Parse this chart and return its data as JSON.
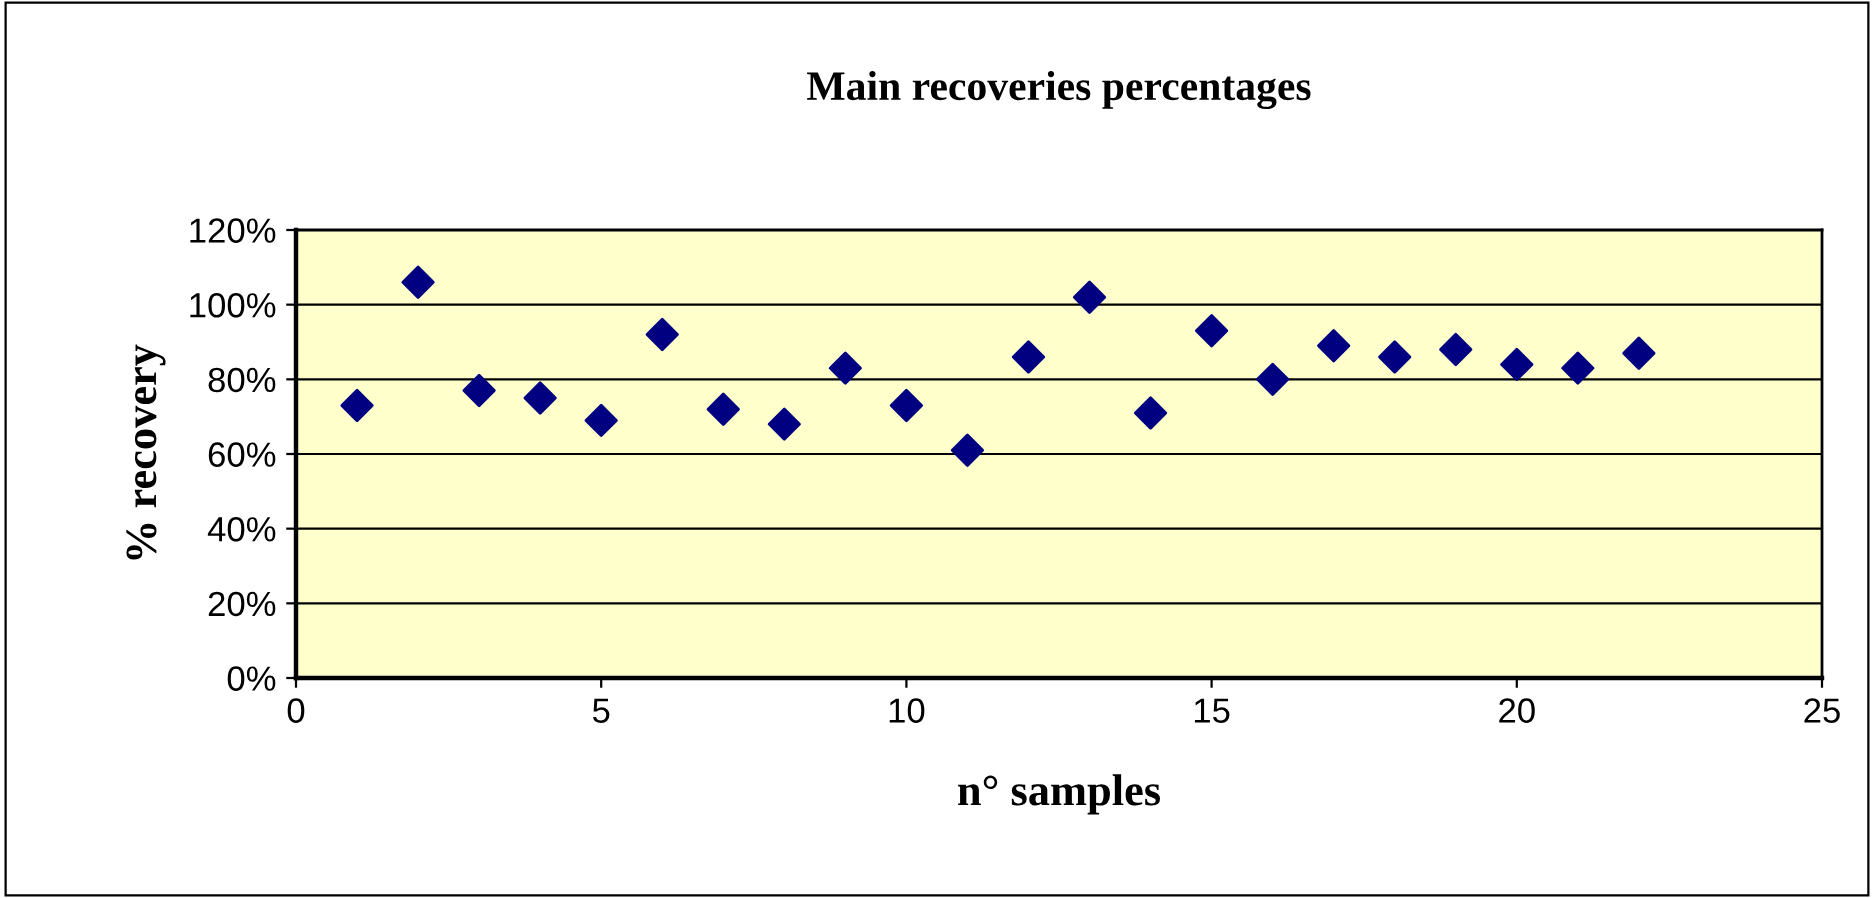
{
  "chart_data": {
    "type": "scatter",
    "title": "Main recoveries percentages",
    "xlabel": "n° samples",
    "ylabel": "% recovery",
    "x": [
      1,
      2,
      3,
      4,
      5,
      6,
      7,
      8,
      9,
      10,
      11,
      12,
      13,
      14,
      15,
      16,
      17,
      18,
      19,
      20,
      21,
      22
    ],
    "series": [
      {
        "color": "#000080",
        "values": [
          73,
          106,
          77,
          75,
          69,
          92,
          72,
          68,
          83,
          73,
          61,
          86,
          102,
          71,
          93,
          80,
          89,
          86,
          88,
          84,
          83,
          87
        ]
      }
    ],
    "xlim": [
      0,
      25
    ],
    "xticks": [
      0,
      5,
      10,
      15,
      20,
      25
    ],
    "ylim": [
      0,
      120
    ],
    "yticks": [
      {
        "value": 0,
        "label": "0%"
      },
      {
        "value": 20,
        "label": "20%"
      },
      {
        "value": 40,
        "label": "40%"
      },
      {
        "value": 60,
        "label": "60%"
      },
      {
        "value": 80,
        "label": "80%"
      },
      {
        "value": 100,
        "label": "100%"
      },
      {
        "value": 120,
        "label": "120%"
      }
    ],
    "grid": "y",
    "marker": "diamond",
    "legend": false
  }
}
